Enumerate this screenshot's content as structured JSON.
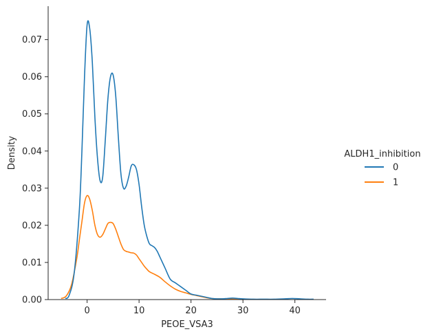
{
  "chart_data": {
    "type": "line",
    "title": "",
    "xlabel": "PEOE_VSA3",
    "ylabel": "Density",
    "xlim": [
      -7.5,
      46
    ],
    "ylim": [
      0,
      0.079
    ],
    "xticks": [
      0,
      10,
      20,
      30,
      40
    ],
    "yticks": [
      0.0,
      0.01,
      0.02,
      0.03,
      0.04,
      0.05,
      0.06,
      0.07
    ],
    "ytick_labels": [
      "0.00",
      "0.01",
      "0.02",
      "0.03",
      "0.04",
      "0.05",
      "0.06",
      "0.07"
    ],
    "xtick_labels": [
      "0",
      "10",
      "20",
      "30",
      "40"
    ],
    "grid": false,
    "legend": {
      "title": "ALDH1_inhibition",
      "placement": "right"
    },
    "series": [
      {
        "name": "0",
        "color": "#1f77b4",
        "x": [
          -4.2,
          -3.5,
          -2.5,
          -1.5,
          -1.0,
          -0.5,
          0.0,
          0.5,
          1.0,
          1.5,
          2.0,
          2.5,
          3.0,
          3.5,
          4.0,
          4.5,
          5.0,
          5.5,
          6.0,
          6.5,
          7.0,
          7.5,
          8.0,
          8.5,
          9.0,
          9.5,
          10.0,
          10.5,
          11.0,
          11.5,
          12.0,
          12.5,
          13.0,
          13.5,
          14.0,
          15.0,
          16.0,
          17.0,
          18.0,
          19.0,
          20.0,
          21.0,
          22.0,
          23.0,
          24.0,
          25.0,
          26.0,
          27.0,
          28.0,
          29.0,
          30.0,
          32.0,
          34.0,
          36.0,
          38.0,
          39.5,
          41.0,
          42.5,
          43.6
        ],
        "y": [
          0.0003,
          0.001,
          0.007,
          0.024,
          0.04,
          0.06,
          0.074,
          0.073,
          0.064,
          0.049,
          0.038,
          0.032,
          0.033,
          0.043,
          0.054,
          0.06,
          0.0605,
          0.055,
          0.044,
          0.034,
          0.03,
          0.0305,
          0.033,
          0.036,
          0.0363,
          0.035,
          0.031,
          0.025,
          0.02,
          0.017,
          0.015,
          0.0145,
          0.014,
          0.013,
          0.0115,
          0.0085,
          0.0055,
          0.0045,
          0.0035,
          0.0025,
          0.0015,
          0.0012,
          0.0009,
          0.0006,
          0.0003,
          0.0002,
          0.0002,
          0.0003,
          0.0004,
          0.0003,
          0.0002,
          0.0001,
          0.0001,
          0.0001,
          0.0002,
          0.0003,
          0.0002,
          0.0001,
          0.0001
        ]
      },
      {
        "name": "1",
        "color": "#ff7f0e",
        "x": [
          -5.0,
          -4.0,
          -3.0,
          -2.0,
          -1.5,
          -1.0,
          -0.5,
          0.0,
          0.5,
          1.0,
          1.5,
          2.0,
          2.5,
          3.0,
          3.5,
          4.0,
          4.5,
          5.0,
          5.5,
          6.0,
          6.5,
          7.0,
          7.5,
          8.0,
          8.5,
          9.0,
          9.5,
          10.0,
          10.5,
          11.0,
          11.5,
          12.0,
          13.0,
          14.0,
          15.0,
          16.0,
          17.0,
          18.0,
          19.0,
          20.0,
          21.0,
          22.0,
          23.0,
          24.0,
          25.0,
          26.0,
          27.0,
          28.0,
          29.0,
          30.0
        ],
        "y": [
          0.0003,
          0.001,
          0.004,
          0.011,
          0.016,
          0.021,
          0.026,
          0.028,
          0.027,
          0.024,
          0.02,
          0.0175,
          0.0168,
          0.0175,
          0.019,
          0.0205,
          0.0208,
          0.0205,
          0.019,
          0.017,
          0.015,
          0.0135,
          0.013,
          0.0128,
          0.0126,
          0.0125,
          0.012,
          0.011,
          0.01,
          0.009,
          0.0082,
          0.0075,
          0.0068,
          0.006,
          0.0048,
          0.0037,
          0.0028,
          0.0022,
          0.0018,
          0.0014,
          0.0011,
          0.0008,
          0.0005,
          0.0003,
          0.0002,
          0.0002,
          0.0002,
          0.0001,
          0.0001,
          0.0
        ]
      }
    ]
  }
}
